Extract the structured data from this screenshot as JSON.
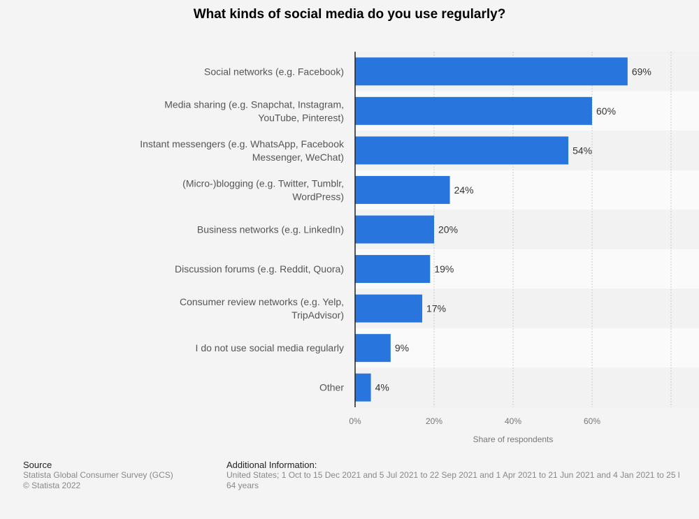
{
  "chart_data": {
    "type": "bar",
    "orientation": "horizontal",
    "title": "What kinds of social media do you use regularly?",
    "xlabel": "Share of respondents",
    "ylabel": "",
    "xlim": [
      0,
      80
    ],
    "x_ticks": [
      "0%",
      "20%",
      "40%",
      "60%"
    ],
    "grid": true,
    "categories": [
      [
        "Social networks (e.g. Facebook)"
      ],
      [
        "Media sharing (e.g. Snapchat, Instagram,",
        "YouTube, Pinterest)"
      ],
      [
        "Instant messengers (e.g. WhatsApp, Facebook",
        "Messenger, WeChat)"
      ],
      [
        "(Micro-)blogging (e.g. Twitter, Tumblr,",
        "WordPress)"
      ],
      [
        "Business networks (e.g. LinkedIn)"
      ],
      [
        "Discussion forums (e.g. Reddit, Quora)"
      ],
      [
        "Consumer review networks (e.g. Yelp,",
        "TripAdvisor)"
      ],
      [
        "I do not use social media regularly"
      ],
      [
        "Other"
      ]
    ],
    "values": [
      69,
      60,
      54,
      24,
      20,
      19,
      17,
      9,
      4
    ],
    "data_labels": [
      "69%",
      "60%",
      "54%",
      "24%",
      "20%",
      "19%",
      "17%",
      "9%",
      "4%"
    ],
    "bar_color": "#2876dd"
  },
  "footer": {
    "source_heading": "Source",
    "source_lines": [
      "Statista Global Consumer Survey (GCS)",
      "© Statista 2022"
    ],
    "info_heading": "Additional Information:",
    "info_lines": [
      "United States; 1 Oct to 15 Dec 2021 and 5 Jul 2021 to 22 Sep 2021 and 1 Apr 2021 to 21 Jun 2021 and 4 Jan 2021 to 25 l",
      "64 years"
    ]
  }
}
